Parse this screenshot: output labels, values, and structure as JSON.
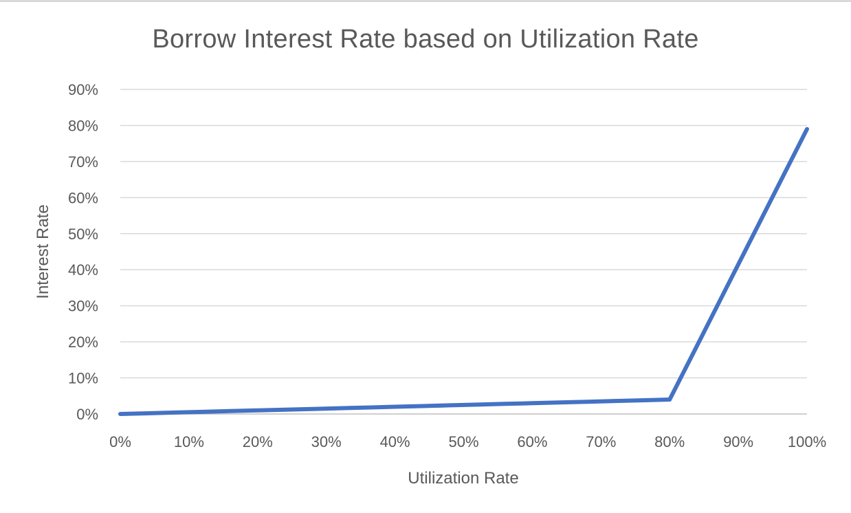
{
  "chart_data": {
    "type": "line",
    "title": "Borrow Interest Rate based on Utilization Rate",
    "xlabel": "Utilization Rate",
    "ylabel": "Interest Rate",
    "x_ticks": [
      "0%",
      "10%",
      "20%",
      "30%",
      "40%",
      "50%",
      "60%",
      "70%",
      "80%",
      "90%",
      "100%"
    ],
    "y_ticks": [
      "0%",
      "10%",
      "20%",
      "30%",
      "40%",
      "50%",
      "60%",
      "70%",
      "80%",
      "90%"
    ],
    "xlim": [
      0,
      100
    ],
    "ylim": [
      0,
      90
    ],
    "grid": true,
    "legend": "none",
    "series": [
      {
        "color": "#4472c4",
        "x": [
          0,
          4,
          8,
          12,
          16,
          20,
          24,
          28,
          32,
          36,
          40,
          44,
          48,
          52,
          56,
          60,
          64,
          68,
          72,
          76,
          80,
          84,
          88,
          92,
          96,
          100
        ],
        "y": [
          0,
          0.2,
          0.4,
          0.6,
          0.8,
          1.0,
          1.2,
          1.4,
          1.6,
          1.8,
          2.0,
          2.2,
          2.4,
          2.6,
          2.8,
          3.0,
          3.2,
          3.4,
          3.6,
          3.8,
          4.0,
          19.0,
          34.0,
          49.0,
          64.0,
          79.0
        ]
      }
    ]
  }
}
